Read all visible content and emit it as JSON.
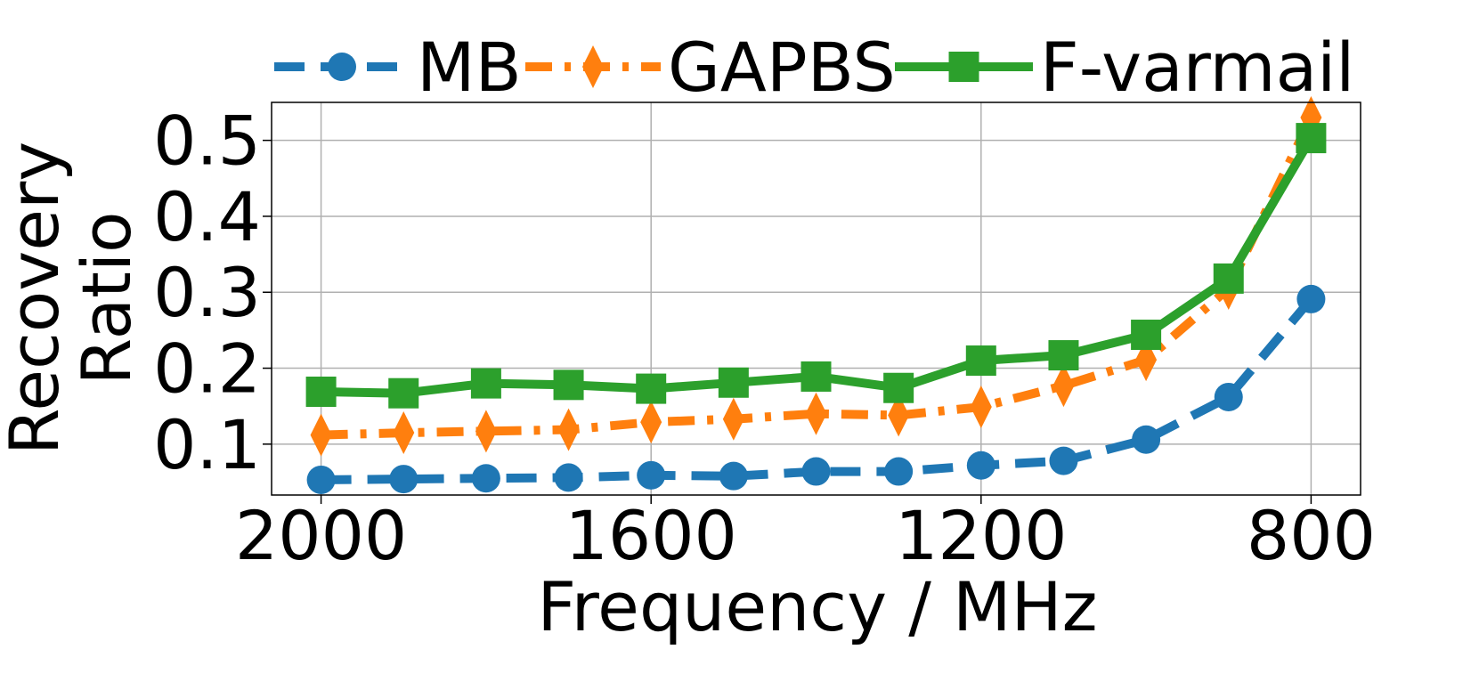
{
  "chart_data": {
    "type": "line",
    "x": [
      2000,
      1900,
      1800,
      1700,
      1600,
      1500,
      1400,
      1300,
      1200,
      1100,
      1000,
      900,
      800
    ],
    "xticks": [
      "2000",
      "1600",
      "1200",
      "800"
    ],
    "xtick_values": [
      2000,
      1600,
      1200,
      800
    ],
    "xlim": [
      2060,
      740
    ],
    "yticks": [
      "0.1",
      "0.2",
      "0.3",
      "0.4",
      "0.5"
    ],
    "ytick_values": [
      0.1,
      0.2,
      0.3,
      0.4,
      0.5
    ],
    "ylim": [
      0.033,
      0.55
    ],
    "xlabel": "Frequency / MHz",
    "ylabel_lines": [
      "Recovery",
      "Ratio"
    ],
    "grid": true,
    "legend_position": "top",
    "series": [
      {
        "name": "MB",
        "color": "#1f77b4",
        "linestyle": "dashed",
        "marker": "circle",
        "values": [
          0.053,
          0.054,
          0.055,
          0.056,
          0.059,
          0.058,
          0.064,
          0.064,
          0.072,
          0.078,
          0.106,
          0.162,
          0.291
        ]
      },
      {
        "name": "GAPBS",
        "color": "#ff7f0e",
        "linestyle": "dashdot",
        "marker": "thin-diamond",
        "values": [
          0.112,
          0.115,
          0.117,
          0.119,
          0.129,
          0.133,
          0.14,
          0.138,
          0.149,
          0.177,
          0.211,
          0.305,
          0.53
        ]
      },
      {
        "name": "F-varmail",
        "color": "#2ca02c",
        "linestyle": "solid",
        "marker": "square",
        "values": [
          0.169,
          0.167,
          0.18,
          0.178,
          0.173,
          0.181,
          0.189,
          0.174,
          0.21,
          0.217,
          0.244,
          0.318,
          0.503
        ]
      }
    ]
  }
}
